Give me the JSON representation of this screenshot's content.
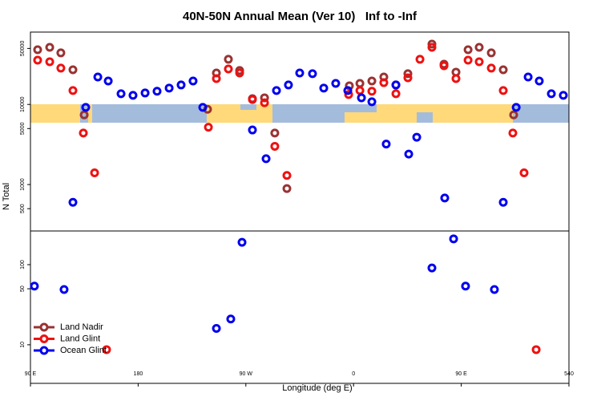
{
  "chart_data": {
    "type": "scatter",
    "title": "40N-50N Annual Mean (Ver 10)   Inf to -Inf",
    "xlabel": "Longitude (deg E)",
    "ylabel": "N Total",
    "log_y": true,
    "legend": "lower left",
    "xlim": [
      90,
      540
    ],
    "ylim": [
      3.3,
      80000
    ],
    "xticks": [
      {
        "value": 90,
        "label": "90 E"
      },
      180,
      {
        "value": 270,
        "label": "90 W"
      },
      {
        "value": 360,
        "label": "0"
      },
      {
        "value": 450,
        "label": "90 E"
      },
      540
    ],
    "yticks": [
      10,
      50,
      100,
      500,
      1000,
      5000,
      10000,
      50000
    ],
    "series": [
      {
        "name": "Land Nadir",
        "color": "#993333",
        "x": [
          96.0,
          106.1,
          115.4,
          125.5,
          134.9,
          238.0,
          245.4,
          255.4,
          264.8,
          275.5,
          285.6,
          294.2,
          304.3,
          356.5,
          365.3,
          375.3,
          385.3,
          395.4,
          405.4,
          425.5,
          435.6,
          445.6,
          455.7,
          465.0,
          475.1,
          485.1,
          493.8
        ],
        "values": [
          48200,
          51600,
          44000,
          27100,
          7400,
          8700,
          24700,
          36600,
          26500,
          11800,
          12100,
          4400,
          890,
          17100,
          18300,
          19600,
          22000,
          17500,
          24200,
          56600,
          31800,
          25300,
          48200,
          51600,
          44000,
          27100,
          7400
        ]
      },
      {
        "name": "Land Glint",
        "color": "#ee1111",
        "x": [
          96.0,
          106.1,
          115.4,
          125.5,
          134.2,
          143.6,
          238.7,
          245.4,
          255.4,
          264.8,
          275.5,
          285.6,
          294.2,
          304.3,
          355.9,
          365.3,
          375.3,
          385.3,
          395.4,
          405.4,
          415.5,
          425.5,
          435.6,
          445.6,
          455.7,
          465.0,
          475.1,
          485.1,
          493.1,
          502.5,
          153.6,
          512.6
        ],
        "values": [
          35700,
          34100,
          28400,
          14900,
          4400,
          1400,
          5200,
          21000,
          27700,
          24700,
          11500,
          10500,
          3000,
          1300,
          13300,
          14900,
          14600,
          18700,
          13600,
          21500,
          36600,
          51600,
          30400,
          21000,
          35700,
          34100,
          28400,
          14900,
          4400,
          1400,
          8.7,
          8.7
        ]
      },
      {
        "name": "Ocean Glint",
        "color": "#0000ee",
        "x": [
          93.3,
          118.1,
          125.5,
          136.2,
          146.3,
          155.0,
          165.7,
          175.7,
          185.8,
          195.8,
          205.9,
          215.9,
          225.9,
          234.0,
          245.4,
          257.4,
          266.8,
          275.5,
          286.9,
          295.6,
          305.6,
          315.0,
          325.7,
          335.1,
          345.1,
          355.2,
          366.6,
          375.3,
          387.3,
          395.4,
          406.1,
          412.8,
          425.5,
          436.2,
          443.6,
          453.6,
          477.7,
          485.1,
          495.9,
          505.9,
          515.2,
          525.3,
          535.3
        ],
        "values": [
          54,
          49,
          600,
          9200,
          22000,
          19600,
          13600,
          13000,
          13900,
          14600,
          16000,
          17500,
          19600,
          9200,
          16,
          21,
          190,
          4800,
          2100,
          14900,
          17500,
          24700,
          24200,
          16000,
          18300,
          14900,
          12100,
          10800,
          3200,
          17500,
          2400,
          3900,
          91,
          680,
          210,
          54,
          49,
          600,
          9200,
          22000,
          19600,
          13600,
          13000
        ]
      }
    ]
  }
}
